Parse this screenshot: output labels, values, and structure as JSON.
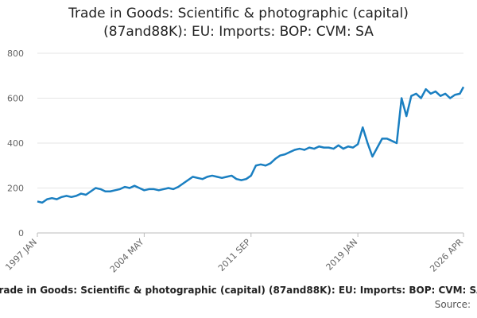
{
  "chart_data": {
    "type": "line",
    "title": "Trade in Goods: Scientific & photographic (capital) (87and88K): EU: Imports: BOP: CVM: SA",
    "source_label": "Source:",
    "x": [
      "1997 JAN",
      "1997 MAY",
      "1997 SEP",
      "1998 JAN",
      "1998 MAY",
      "1998 SEP",
      "1999 JAN",
      "1999 MAY",
      "1999 SEP",
      "2000 JAN",
      "2000 MAY",
      "2000 SEP",
      "2001 JAN",
      "2001 MAY",
      "2001 SEP",
      "2002 JAN",
      "2002 MAY",
      "2002 SEP",
      "2003 JAN",
      "2003 MAY",
      "2003 SEP",
      "2004 JAN",
      "2004 MAY",
      "2004 SEP",
      "2005 JAN",
      "2005 MAY",
      "2005 SEP",
      "2006 JAN",
      "2006 MAY",
      "2006 SEP",
      "2007 JAN",
      "2007 MAY",
      "2007 SEP",
      "2008 JAN",
      "2008 MAY",
      "2008 SEP",
      "2009 JAN",
      "2009 MAY",
      "2009 SEP",
      "2010 JAN",
      "2010 MAY",
      "2010 SEP",
      "2011 JAN",
      "2011 MAY",
      "2011 SEP",
      "2012 JAN",
      "2012 MAY",
      "2012 SEP",
      "2013 JAN",
      "2013 MAY",
      "2013 SEP",
      "2014 JAN",
      "2014 MAY",
      "2014 SEP",
      "2015 JAN",
      "2015 MAY",
      "2015 SEP",
      "2016 JAN",
      "2016 MAY",
      "2016 SEP",
      "2017 JAN",
      "2017 MAY",
      "2017 SEP",
      "2018 JAN",
      "2018 MAY",
      "2018 SEP",
      "2019 JAN",
      "2019 MAY",
      "2019 SEP",
      "2020 JAN",
      "2020 MAY",
      "2020 SEP",
      "2021 JAN",
      "2021 MAY",
      "2021 SEP",
      "2022 JAN",
      "2022 MAY",
      "2022 SEP",
      "2023 JAN",
      "2023 MAY",
      "2023 SEP",
      "2024 JAN",
      "2024 MAY",
      "2024 SEP",
      "2025 JAN",
      "2025 MAY",
      "2025 SEP",
      "2026 JAN",
      "2026 APR"
    ],
    "series": [
      {
        "color": "#1a7fc1",
        "values": [
          140,
          135,
          150,
          155,
          150,
          160,
          165,
          160,
          165,
          175,
          170,
          185,
          200,
          195,
          185,
          185,
          190,
          195,
          205,
          200,
          210,
          200,
          190,
          195,
          195,
          190,
          195,
          200,
          195,
          205,
          220,
          235,
          250,
          245,
          240,
          250,
          255,
          250,
          245,
          250,
          255,
          240,
          235,
          240,
          255,
          300,
          305,
          300,
          310,
          330,
          345,
          350,
          360,
          370,
          375,
          370,
          380,
          375,
          385,
          380,
          380,
          375,
          390,
          375,
          385,
          380,
          395,
          470,
          400,
          340,
          380,
          420,
          420,
          410,
          400,
          600,
          520,
          610,
          620,
          600,
          640,
          620,
          630,
          610,
          620,
          600,
          615,
          620,
          650
        ]
      }
    ],
    "xlim": [
      "1997 JAN",
      "2026 APR"
    ],
    "xticks": [
      "1997 JAN",
      "2004 MAY",
      "2011 SEP",
      "2019 JAN",
      "2026 APR"
    ],
    "ylim": [
      0,
      800
    ],
    "yticks": [
      0,
      200,
      400,
      600,
      800
    ],
    "grid": true
  }
}
